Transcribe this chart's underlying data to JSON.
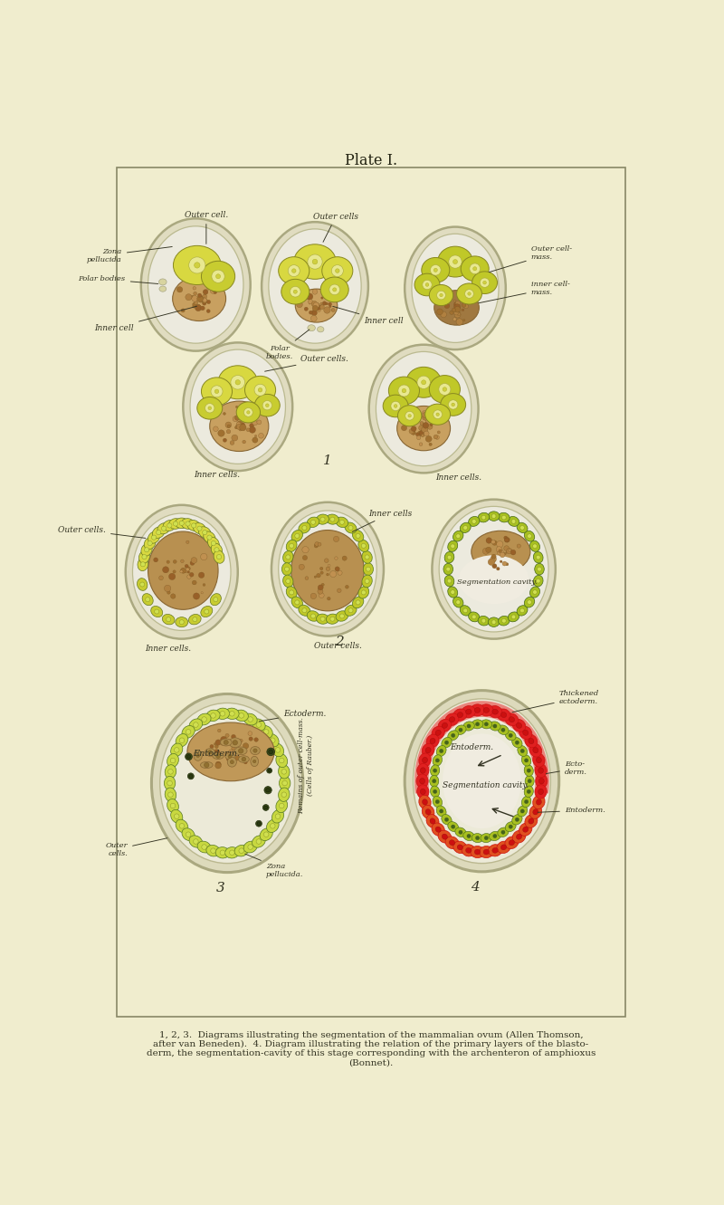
{
  "background_color": "#f0edce",
  "title": "Plate I.",
  "caption_line1": "1, 2, 3.  Diagrams illustrating the segmentation of the mammalian ovum (Allen Thomson,",
  "caption_line2": "after van Beneden).  4. Diagram illustrating the relation of the primary layers of the blasto-",
  "caption_line3": "derm, the segmentation-cavity of this stage corresponding with the archenteron of amphioxus",
  "caption_line4": "(Bonnet).",
  "zona_outer_color": "#e0dcc0",
  "zona_inner_color": "#eceade",
  "cell_yellow_bright": "#d8d840",
  "cell_yellow_mid": "#c8cc30",
  "cell_yellow_dark": "#b0b820",
  "cell_yellow_green": "#c0c828",
  "inner_brown_light": "#c8a060",
  "inner_brown_dark": "#a07840",
  "inner_brown_mid": "#b89050",
  "ecto_green_light": "#c8d840",
  "ecto_green_mid": "#a8c020",
  "ecto_green_dark": "#88a018",
  "red_bright": "#e02020",
  "red_dark": "#cc1010",
  "orange_red": "#e05020",
  "green_dot": "#446618",
  "label_color": "#333322",
  "seg_cavity": "#f0ece0"
}
